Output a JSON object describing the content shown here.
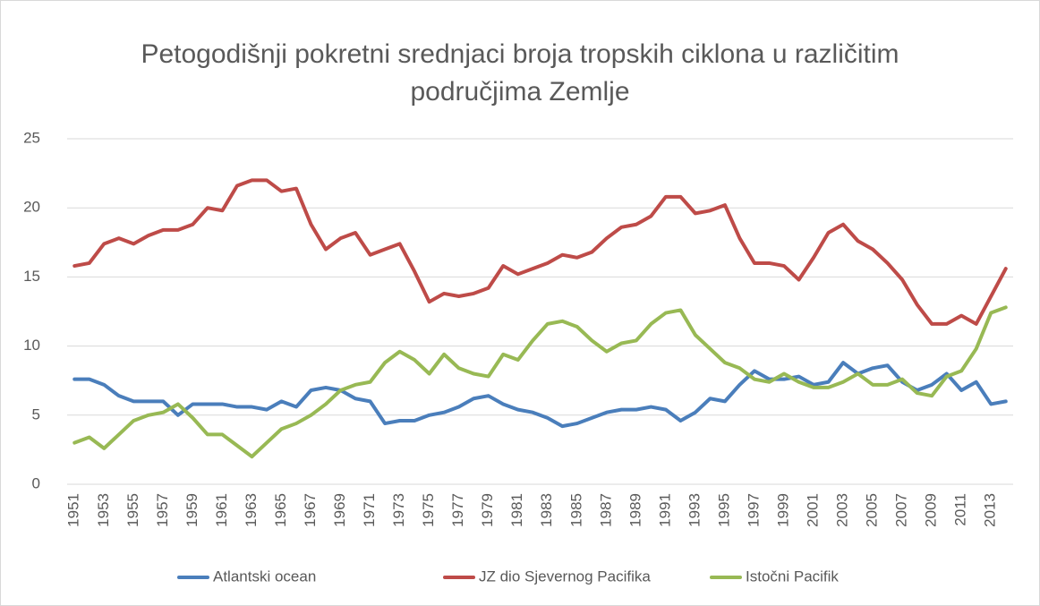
{
  "chart_data": {
    "type": "line",
    "title": "Petogodišnji pokretni srednjaci broja tropskih ciklona u različitim područjima Zemlje",
    "categories": [
      "1951",
      null,
      "1953",
      null,
      "1955",
      null,
      "1957",
      null,
      "1959",
      null,
      "1961",
      null,
      "1963",
      null,
      "1965",
      null,
      "1967",
      null,
      "1969",
      null,
      "1971",
      null,
      "1973",
      null,
      "1975",
      null,
      "1977",
      null,
      "1979",
      null,
      "1981",
      null,
      "1983",
      null,
      "1985",
      null,
      "1987",
      null,
      "1989",
      null,
      "1991",
      null,
      "1993",
      null,
      "1995",
      null,
      "1997",
      null,
      "1999",
      null,
      "2001",
      null,
      "2003",
      null,
      "2005",
      null,
      "2007",
      null,
      "2009",
      null,
      "2011",
      null,
      "2013",
      null
    ],
    "series": [
      {
        "name": "Atlantski ocean",
        "color": "#4a7ebb",
        "values": [
          7.6,
          7.6,
          7.2,
          6.4,
          6.0,
          6.0,
          6.0,
          5.0,
          5.8,
          5.8,
          5.8,
          5.6,
          5.6,
          5.4,
          6.0,
          5.6,
          6.8,
          7.0,
          6.8,
          6.2,
          6.0,
          4.4,
          4.6,
          4.6,
          5.0,
          5.2,
          5.6,
          6.2,
          6.4,
          5.8,
          5.4,
          5.2,
          4.8,
          4.2,
          4.4,
          4.8,
          5.2,
          5.4,
          5.4,
          5.6,
          5.4,
          4.6,
          5.2,
          6.2,
          6.0,
          7.2,
          8.2,
          7.6,
          7.6,
          7.8,
          7.2,
          7.4,
          8.8,
          8.0,
          8.4,
          8.6,
          7.4,
          6.8,
          7.2,
          8.0,
          6.8,
          7.4,
          5.8,
          6.0
        ]
      },
      {
        "name": "JZ dio Sjevernog Pacifika",
        "color": "#be4b48",
        "values": [
          15.8,
          16.0,
          17.4,
          17.8,
          17.4,
          18.0,
          18.4,
          18.4,
          18.8,
          20.0,
          19.8,
          21.6,
          22.0,
          22.0,
          21.2,
          21.4,
          18.8,
          17.0,
          17.8,
          18.2,
          16.6,
          17.0,
          17.4,
          15.4,
          13.2,
          13.8,
          13.6,
          13.8,
          14.2,
          15.8,
          15.2,
          15.6,
          16.0,
          16.6,
          16.4,
          16.8,
          17.8,
          18.6,
          18.8,
          19.4,
          20.8,
          20.8,
          19.6,
          19.8,
          20.2,
          17.8,
          16.0,
          16.0,
          15.8,
          14.8,
          16.4,
          18.2,
          18.8,
          17.6,
          17.0,
          16.0,
          14.8,
          13.0,
          11.6,
          11.6,
          12.2,
          11.6,
          13.6,
          15.6
        ]
      },
      {
        "name": "Istočni Pacifik",
        "color": "#98b954",
        "values": [
          3.0,
          3.4,
          2.6,
          3.6,
          4.6,
          5.0,
          5.2,
          5.8,
          4.8,
          3.6,
          3.6,
          2.8,
          2.0,
          3.0,
          4.0,
          4.4,
          5.0,
          5.8,
          6.8,
          7.2,
          7.4,
          8.8,
          9.6,
          9.0,
          8.0,
          9.4,
          8.4,
          8.0,
          7.8,
          9.4,
          9.0,
          10.4,
          11.6,
          11.8,
          11.4,
          10.4,
          9.6,
          10.2,
          10.4,
          11.6,
          12.4,
          12.6,
          10.8,
          9.8,
          8.8,
          8.4,
          7.6,
          7.4,
          8.0,
          7.4,
          7.0,
          7.0,
          7.4,
          8.0,
          7.2,
          7.2,
          7.6,
          6.6,
          6.4,
          7.8,
          8.2,
          9.8,
          12.4,
          12.8
        ]
      }
    ],
    "ylim": [
      0,
      25
    ],
    "yticks": [
      0,
      5,
      10,
      15,
      20,
      25
    ],
    "grid": true,
    "legend": "bottom"
  }
}
